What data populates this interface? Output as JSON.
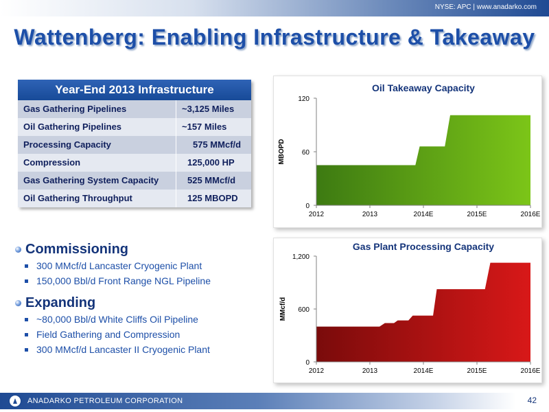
{
  "header": {
    "ticker": "NYSE: APC | www.anadarko.com"
  },
  "title": "Wattenberg: Enabling Infrastructure & Takeaway",
  "infrastructure": {
    "header": "Year-End 2013 Infrastructure",
    "rows": [
      {
        "label": "Gas Gathering Pipelines",
        "value": "~3,125 Miles"
      },
      {
        "label": "Oil Gathering Pipelines",
        "value": "~157 Miles"
      },
      {
        "label": "Processing Capacity",
        "value": "575 MMcf/d"
      },
      {
        "label": "Compression",
        "value": "125,000 HP"
      },
      {
        "label": "Gas Gathering System Capacity",
        "value": "525 MMcf/d"
      },
      {
        "label": "Oil Gathering Throughput",
        "value": "125 MBOPD"
      }
    ]
  },
  "sections": [
    {
      "heading": "Commissioning",
      "items": [
        "300 MMcf/d Lancaster Cryogenic Plant",
        "150,000 Bbl/d Front Range NGL Pipeline"
      ]
    },
    {
      "heading": "Expanding",
      "items": [
        "~80,000 Bbl/d White Cliffs Oil Pipeline",
        "Field Gathering and Compression",
        "300 MMcf/d Lancaster II Cryogenic Plant"
      ]
    }
  ],
  "chart_data": [
    {
      "type": "area",
      "title": "Oil Takeaway Capacity",
      "ylabel": "MBOPD",
      "xlabel": "",
      "ylim": [
        0,
        120
      ],
      "yticks": [
        "0",
        "60",
        "120"
      ],
      "xlim": [
        0,
        4
      ],
      "xticks": [
        "2012",
        "2013",
        "2014E",
        "2015E",
        "2016E"
      ],
      "color": "#7cc518",
      "x": [
        0,
        1.85,
        1.93,
        2.4,
        2.5,
        4
      ],
      "y": [
        45,
        45,
        66,
        66,
        101,
        101
      ]
    },
    {
      "type": "area",
      "title": "Gas Plant Processing Capacity",
      "ylabel": "MMcf/d",
      "xlabel": "",
      "ylim": [
        0,
        1200
      ],
      "yticks": [
        "0",
        "600",
        "1,200"
      ],
      "xlim": [
        0,
        4
      ],
      "xticks": [
        "2012",
        "2013",
        "2014E",
        "2015E",
        "2016E"
      ],
      "color": "#d81818",
      "x": [
        0,
        1.18,
        1.28,
        1.45,
        1.52,
        1.72,
        1.8,
        2.18,
        2.25,
        2.6,
        3.15,
        3.25,
        4
      ],
      "y": [
        400,
        400,
        440,
        440,
        470,
        470,
        525,
        525,
        825,
        825,
        825,
        1125,
        1125
      ]
    }
  ],
  "footer": {
    "company": "ANADARKO PETROLEUM CORPORATION",
    "page": "42"
  }
}
